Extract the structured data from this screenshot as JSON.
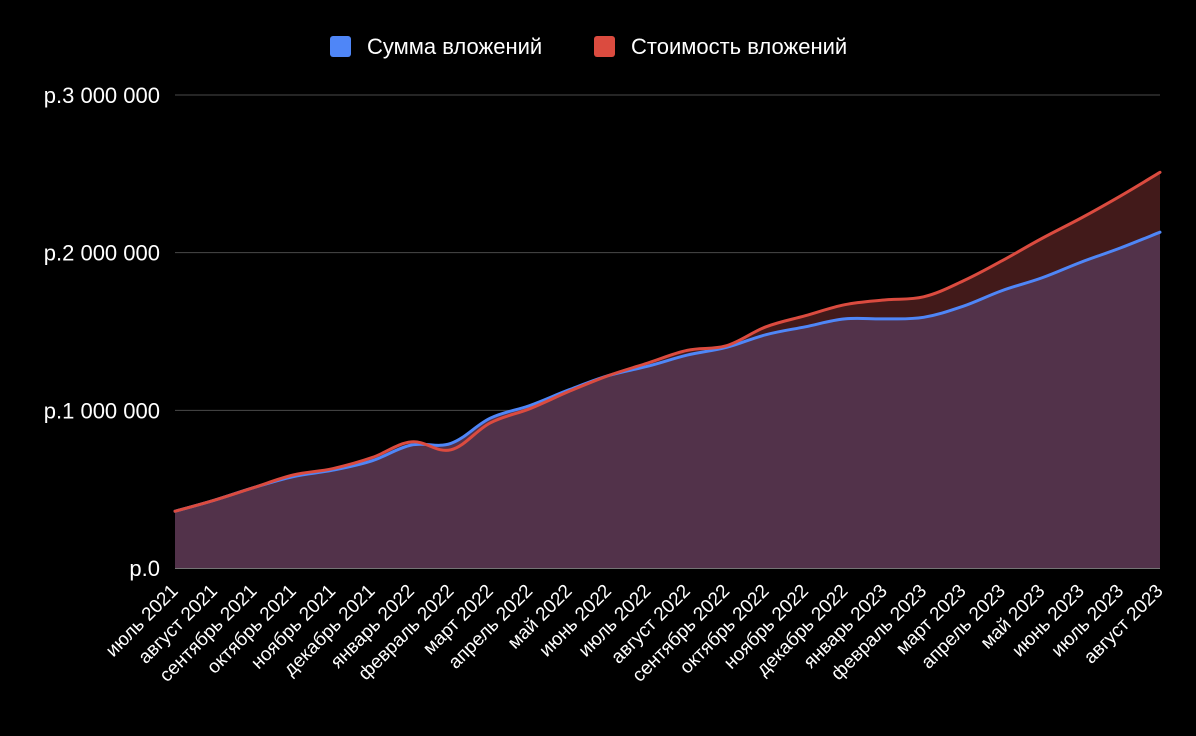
{
  "chart_data": {
    "type": "area",
    "title": "",
    "xlabel": "",
    "ylabel": "",
    "ylim": [
      0,
      3000000
    ],
    "yticks": [
      {
        "value": 0,
        "label": "р.0"
      },
      {
        "value": 1000000,
        "label": "р.1 000 000"
      },
      {
        "value": 2000000,
        "label": "р.2 000 000"
      },
      {
        "value": 3000000,
        "label": "р.3 000 000"
      }
    ],
    "grid": true,
    "legend_position": "top",
    "categories": [
      "июль 2021",
      "август 2021",
      "сентябрь 2021",
      "октябрь 2021",
      "ноябрь 2021",
      "декабрь 2021",
      "январь 2022",
      "февраль 2022",
      "март 2022",
      "апрель 2022",
      "май 2022",
      "июнь 2022",
      "июль 2022",
      "август 2022",
      "сентябрь 2022",
      "октябрь 2022",
      "ноябрь 2022",
      "декабрь 2022",
      "январь 2023",
      "февраль 2023",
      "март 2023",
      "апрель 2023",
      "май 2023",
      "июнь 2023",
      "июль 2023",
      "август 2023"
    ],
    "series": [
      {
        "name": "Сумма вложений",
        "color": "#4f86f7",
        "fill": "#52324a",
        "values": [
          360000,
          430000,
          510000,
          580000,
          620000,
          680000,
          780000,
          790000,
          950000,
          1030000,
          1130000,
          1220000,
          1280000,
          1350000,
          1400000,
          1480000,
          1530000,
          1580000,
          1580000,
          1590000,
          1660000,
          1760000,
          1840000,
          1940000,
          2030000,
          2130000
        ]
      },
      {
        "name": "Стоимость вложений",
        "color": "#db4b3f",
        "fill": "#421a1a",
        "values": [
          360000,
          430000,
          510000,
          590000,
          630000,
          700000,
          800000,
          750000,
          920000,
          1010000,
          1120000,
          1220000,
          1300000,
          1380000,
          1410000,
          1530000,
          1600000,
          1670000,
          1700000,
          1720000,
          1820000,
          1950000,
          2090000,
          2220000,
          2360000,
          2510000
        ]
      }
    ]
  }
}
